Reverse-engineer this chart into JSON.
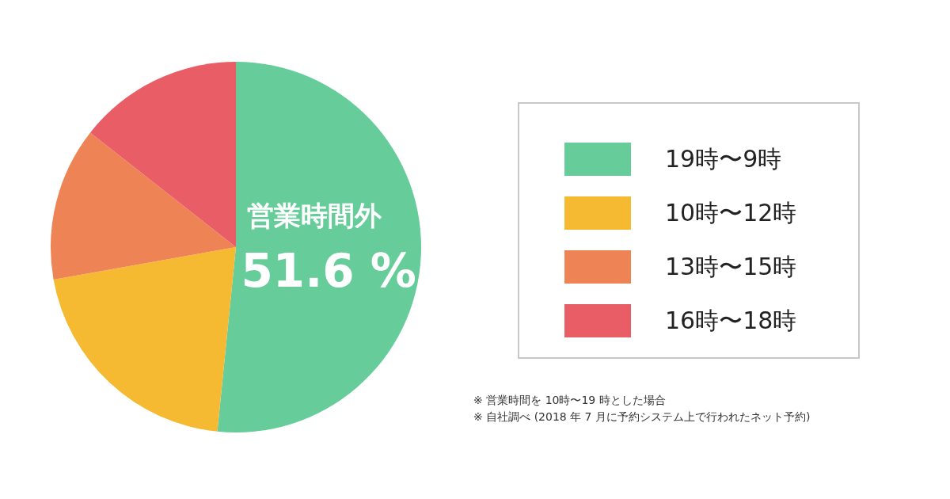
{
  "chart_data": {
    "type": "pie",
    "categories": [
      "19時〜9時",
      "10時〜12時",
      "13時〜15時",
      "16時〜18時"
    ],
    "values": [
      51.6,
      20.6,
      13.4,
      14.4
    ],
    "colors": [
      "#66cc99",
      "#f5b932",
      "#ee8455",
      "#e95d67"
    ],
    "value_labels": [
      "51.6 %",
      null,
      null,
      null
    ],
    "legend": "right",
    "annotations": [
      "営業時間外",
      "※ 営業時間を 10時〜19 時とした場合",
      "※ 自社調べ (2018 年 7 月に予約システム上で行われたネット予約)"
    ]
  }
}
